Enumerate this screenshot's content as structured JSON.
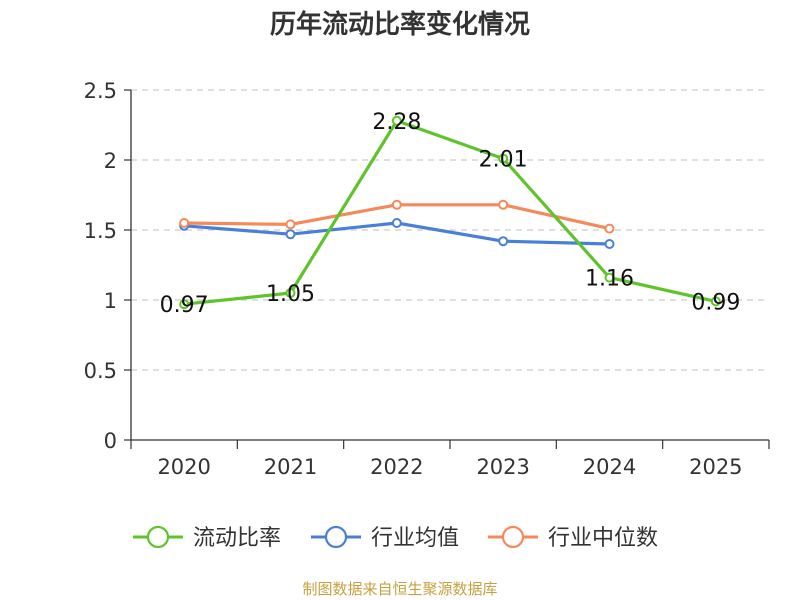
{
  "chart_data": {
    "type": "line",
    "title": "历年流动比率变化情况",
    "categories": [
      "2020",
      "2021",
      "2022",
      "2023",
      "2024",
      "2025"
    ],
    "ylim": [
      0,
      2.5
    ],
    "yticks": [
      "0",
      "0.5",
      "1",
      "1.5",
      "2",
      "2.5"
    ],
    "ytick_values": [
      0,
      0.5,
      1,
      1.5,
      2,
      2.5
    ],
    "grid": true,
    "legend_position": "bottom",
    "series": [
      {
        "name": "流动比率",
        "color": "#5fc42b",
        "values": [
          0.97,
          1.05,
          2.28,
          2.01,
          1.16,
          0.99
        ],
        "labels": [
          "0.97",
          "1.05",
          "2.28",
          "2.01",
          "1.16",
          "0.99"
        ],
        "show_labels": true
      },
      {
        "name": "行业均值",
        "color": "#4a7fd8",
        "values": [
          1.53,
          1.47,
          1.55,
          1.42,
          1.4,
          null
        ],
        "show_labels": false
      },
      {
        "name": "行业中位数",
        "color": "#f5895a",
        "values": [
          1.55,
          1.54,
          1.68,
          1.68,
          1.51,
          null
        ],
        "show_labels": false
      }
    ]
  },
  "footer": "制图数据来自恒生聚源数据库"
}
